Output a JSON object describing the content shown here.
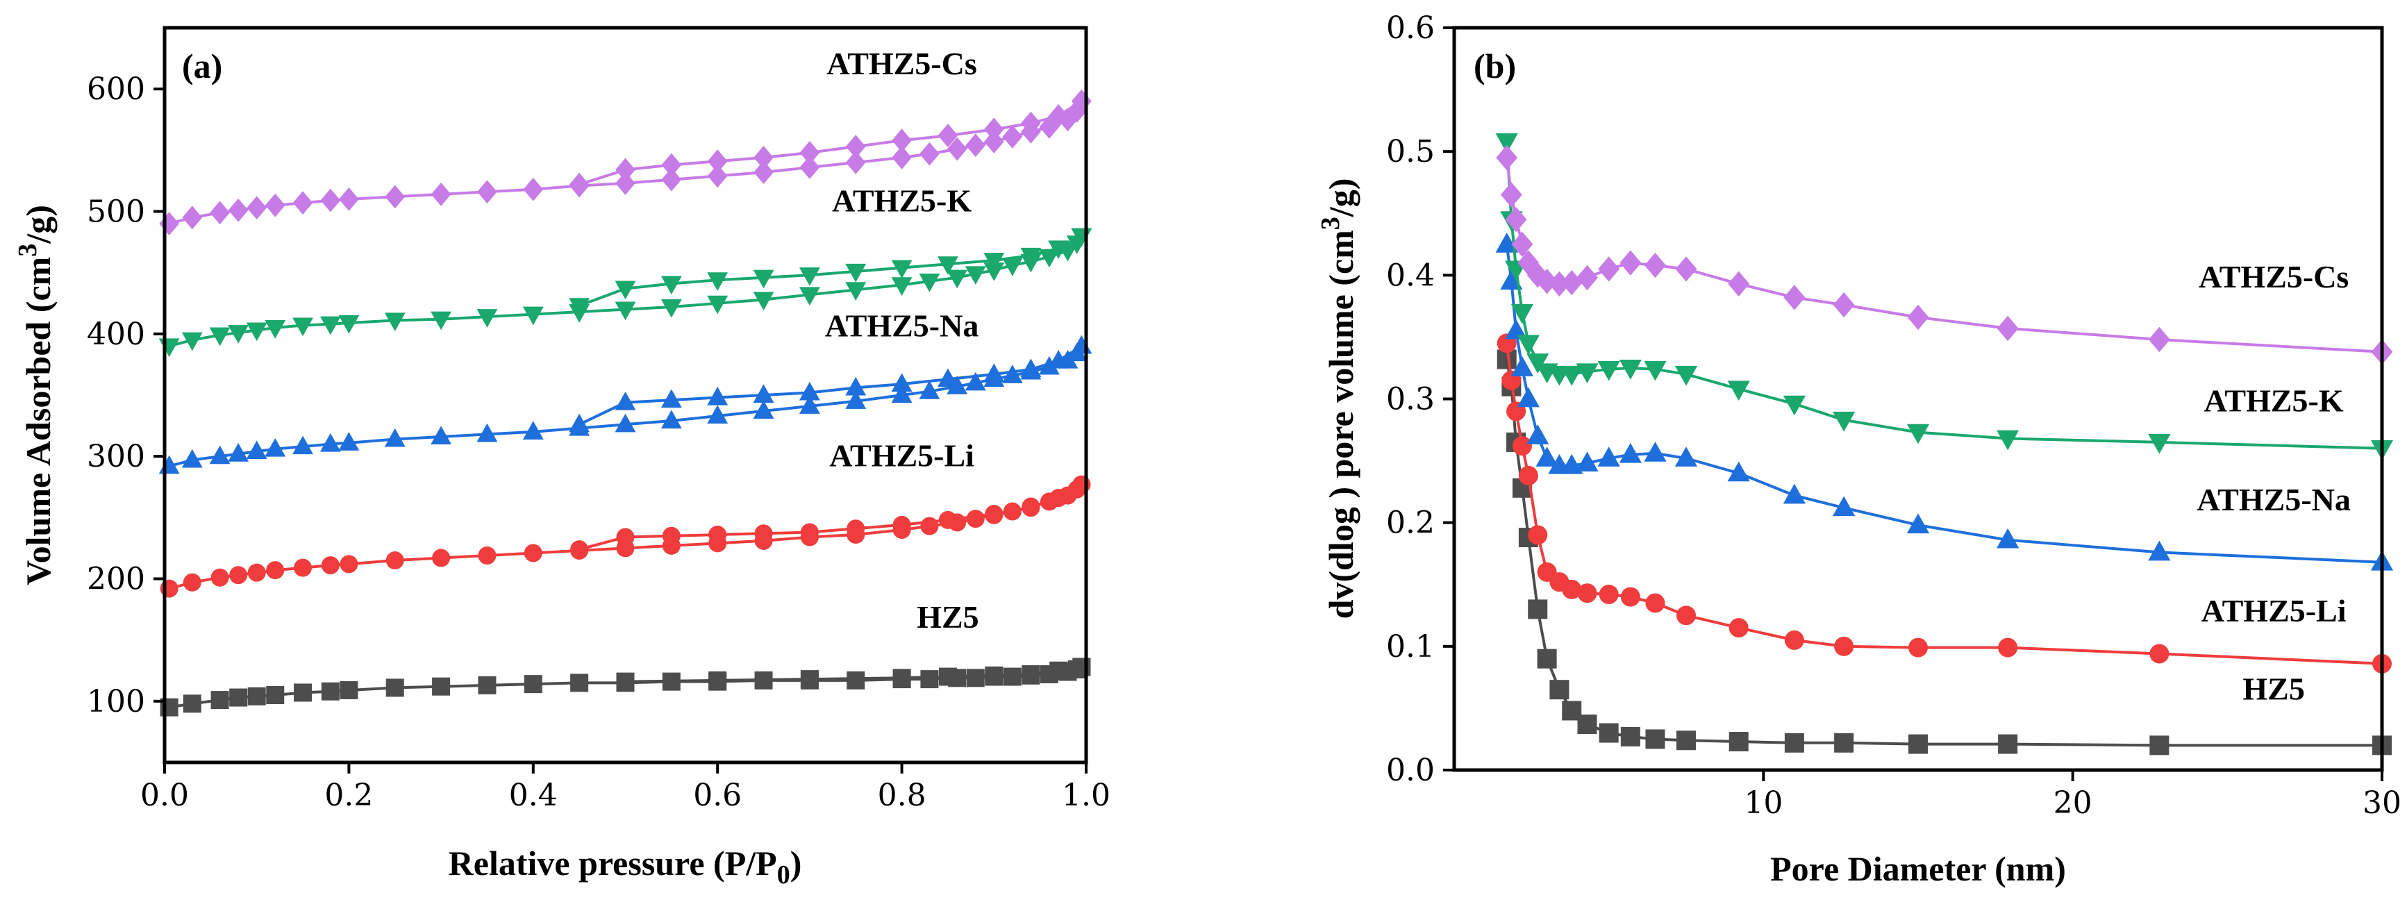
{
  "chart_data": [
    {
      "type": "line",
      "panel": "(a)",
      "title": "",
      "xlabel": "Relative pressure (P/P",
      "xlabel_sub": "0",
      "xlabel_close": ")",
      "ylabel": "Volume Adsorbed (cm",
      "ylabel_sup": "3",
      "ylabel_tail": "/g)",
      "xlim": [
        0.0,
        1.0
      ],
      "ylim": [
        50,
        650
      ],
      "x_ticks": [
        0.0,
        0.2,
        0.4,
        0.6,
        0.8,
        1.0
      ],
      "x_tick_labels": [
        "0.0",
        "0.2",
        "0.4",
        "0.6",
        "0.8",
        "1.0"
      ],
      "y_ticks": [
        100,
        200,
        300,
        400,
        500,
        600
      ],
      "y_tick_labels": [
        "100",
        "200",
        "300",
        "400",
        "500",
        "600"
      ],
      "series": [
        {
          "name": "HZ5",
          "color": "#4d4d4d",
          "marker": "square",
          "adsorption": {
            "x": [
              0.005,
              0.03,
              0.06,
              0.08,
              0.1,
              0.12,
              0.15,
              0.18,
              0.2,
              0.25,
              0.3,
              0.35,
              0.4,
              0.45,
              0.5,
              0.55,
              0.6,
              0.65,
              0.7,
              0.75,
              0.8,
              0.83,
              0.86,
              0.88,
              0.9,
              0.92,
              0.94,
              0.96,
              0.98,
              0.99,
              0.995
            ],
            "y": [
              95,
              98,
              101,
              103,
              104,
              105,
              107,
              108,
              109,
              111,
              112,
              113,
              114,
              115,
              115,
              116,
              116,
              117,
              117,
              117,
              118,
              118,
              119,
              119,
              120,
              120,
              121,
              122,
              124,
              126,
              128
            ]
          },
          "desorption": {
            "x": [
              0.995,
              0.97,
              0.94,
              0.9,
              0.85,
              0.8,
              0.7,
              0.6,
              0.5
            ],
            "y": [
              128,
              125,
              122,
              121,
              120,
              119,
              118,
              117,
              116
            ]
          }
        },
        {
          "name": "ATHZ5-Li",
          "color": "#f03c3c",
          "marker": "circle",
          "adsorption": {
            "x": [
              0.005,
              0.03,
              0.06,
              0.08,
              0.1,
              0.12,
              0.15,
              0.18,
              0.2,
              0.25,
              0.3,
              0.35,
              0.4,
              0.45,
              0.5,
              0.55,
              0.6,
              0.65,
              0.7,
              0.75,
              0.8,
              0.83,
              0.86,
              0.88,
              0.9,
              0.92,
              0.94,
              0.96,
              0.98,
              0.99,
              0.995
            ],
            "y": [
              192,
              197,
              201,
              203,
              205,
              207,
              209,
              211,
              212,
              215,
              217,
              219,
              221,
              223,
              225,
              227,
              229,
              231,
              234,
              236,
              240,
              243,
              246,
              249,
              252,
              255,
              259,
              263,
              268,
              273,
              277
            ]
          },
          "desorption": {
            "x": [
              0.995,
              0.97,
              0.94,
              0.9,
              0.85,
              0.8,
              0.75,
              0.7,
              0.65,
              0.6,
              0.55,
              0.5,
              0.45
            ],
            "y": [
              277,
              266,
              258,
              253,
              248,
              244,
              241,
              238,
              237,
              236,
              235,
              234,
              224
            ]
          }
        },
        {
          "name": "ATHZ5-Na",
          "color": "#1e6fdc",
          "marker": "triangle-up",
          "adsorption": {
            "x": [
              0.005,
              0.03,
              0.06,
              0.08,
              0.1,
              0.12,
              0.15,
              0.18,
              0.2,
              0.25,
              0.3,
              0.35,
              0.4,
              0.45,
              0.5,
              0.55,
              0.6,
              0.65,
              0.7,
              0.75,
              0.8,
              0.83,
              0.86,
              0.88,
              0.9,
              0.92,
              0.94,
              0.96,
              0.98,
              0.99,
              0.995
            ],
            "y": [
              292,
              297,
              300,
              302,
              304,
              306,
              308,
              310,
              311,
              314,
              316,
              318,
              320,
              323,
              326,
              329,
              333,
              337,
              341,
              345,
              350,
              353,
              357,
              360,
              363,
              366,
              369,
              373,
              378,
              384,
              390
            ]
          },
          "desorption": {
            "x": [
              0.995,
              0.97,
              0.94,
              0.9,
              0.85,
              0.8,
              0.75,
              0.7,
              0.65,
              0.6,
              0.55,
              0.5,
              0.45
            ],
            "y": [
              390,
              378,
              371,
              367,
              363,
              359,
              356,
              352,
              350,
              348,
              346,
              344,
              326
            ]
          }
        },
        {
          "name": "ATHZ5-K",
          "color": "#1aa86c",
          "marker": "triangle-down",
          "adsorption": {
            "x": [
              0.005,
              0.03,
              0.06,
              0.08,
              0.1,
              0.12,
              0.15,
              0.18,
              0.2,
              0.25,
              0.3,
              0.35,
              0.4,
              0.45,
              0.5,
              0.55,
              0.6,
              0.65,
              0.7,
              0.75,
              0.8,
              0.83,
              0.86,
              0.88,
              0.9,
              0.92,
              0.94,
              0.96,
              0.98,
              0.99,
              0.995
            ],
            "y": [
              390,
              395,
              399,
              401,
              403,
              405,
              407,
              408,
              409,
              411,
              412,
              414,
              416,
              418,
              420,
              422,
              425,
              428,
              432,
              436,
              440,
              443,
              446,
              449,
              452,
              456,
              459,
              463,
              468,
              474,
              480
            ]
          },
          "desorption": {
            "x": [
              0.995,
              0.97,
              0.94,
              0.9,
              0.85,
              0.8,
              0.75,
              0.7,
              0.65,
              0.6,
              0.55,
              0.5,
              0.45
            ],
            "y": [
              480,
              470,
              464,
              460,
              457,
              454,
              451,
              448,
              446,
              444,
              441,
              437,
              423
            ]
          }
        },
        {
          "name": "ATHZ5-Cs",
          "color": "#c77be6",
          "marker": "diamond",
          "adsorption": {
            "x": [
              0.005,
              0.03,
              0.06,
              0.08,
              0.1,
              0.12,
              0.15,
              0.18,
              0.2,
              0.25,
              0.3,
              0.35,
              0.4,
              0.45,
              0.5,
              0.55,
              0.6,
              0.65,
              0.7,
              0.75,
              0.8,
              0.83,
              0.86,
              0.88,
              0.9,
              0.92,
              0.94,
              0.96,
              0.98,
              0.99,
              0.995
            ],
            "y": [
              490,
              495,
              499,
              501,
              503,
              505,
              507,
              509,
              510,
              512,
              514,
              516,
              518,
              521,
              523,
              526,
              529,
              532,
              536,
              540,
              544,
              547,
              551,
              554,
              557,
              561,
              565,
              569,
              575,
              582,
              590
            ]
          },
          "desorption": {
            "x": [
              0.995,
              0.97,
              0.94,
              0.9,
              0.85,
              0.8,
              0.75,
              0.7,
              0.65,
              0.6,
              0.55,
              0.5,
              0.45
            ],
            "y": [
              590,
              578,
              572,
              567,
              562,
              558,
              553,
              548,
              544,
              541,
              538,
              534,
              522
            ]
          }
        }
      ],
      "annotations": [
        {
          "text": "ATHZ5-Cs",
          "x": 0.8,
          "y": 612
        },
        {
          "text": "ATHZ5-K",
          "x": 0.8,
          "y": 500
        },
        {
          "text": "ATHZ5-Na",
          "x": 0.8,
          "y": 398
        },
        {
          "text": "ATHZ5-Li",
          "x": 0.8,
          "y": 292
        },
        {
          "text": "HZ5",
          "x": 0.85,
          "y": 160
        }
      ]
    },
    {
      "type": "line",
      "panel": "(b)",
      "title": "",
      "xlabel": "Pore Diameter (nm)",
      "ylabel": "dv(dlog ) pore volume (cm",
      "ylabel_sup": "3",
      "ylabel_tail": "/g)",
      "xlim": [
        0,
        30
      ],
      "ylim": [
        0.0,
        0.6
      ],
      "x_ticks": [
        10,
        20,
        30
      ],
      "x_tick_labels": [
        "10",
        "20",
        "30"
      ],
      "y_ticks": [
        0.0,
        0.1,
        0.2,
        0.3,
        0.4,
        0.5,
        0.6
      ],
      "y_tick_labels": [
        "0.0",
        "0.1",
        "0.2",
        "0.3",
        "0.4",
        "0.5",
        "0.6"
      ],
      "series": [
        {
          "name": "HZ5",
          "color": "#4d4d4d",
          "marker": "square",
          "x": [
            1.7,
            1.85,
            2.0,
            2.2,
            2.4,
            2.7,
            3.0,
            3.4,
            3.8,
            4.3,
            5.0,
            5.7,
            6.5,
            7.5,
            9.2,
            11.0,
            12.6,
            15.0,
            17.9,
            22.8,
            30.0
          ],
          "y": [
            0.332,
            0.31,
            0.265,
            0.228,
            0.188,
            0.13,
            0.09,
            0.065,
            0.048,
            0.037,
            0.03,
            0.027,
            0.025,
            0.024,
            0.023,
            0.022,
            0.022,
            0.021,
            0.021,
            0.02,
            0.02
          ]
        },
        {
          "name": "ATHZ5-Li",
          "color": "#f03c3c",
          "marker": "circle",
          "x": [
            1.7,
            1.85,
            2.0,
            2.2,
            2.4,
            2.7,
            3.0,
            3.4,
            3.8,
            4.3,
            5.0,
            5.7,
            6.5,
            7.5,
            9.2,
            11.0,
            12.6,
            15.0,
            17.9,
            22.8,
            30.0
          ],
          "y": [
            0.345,
            0.315,
            0.29,
            0.262,
            0.238,
            0.19,
            0.16,
            0.152,
            0.146,
            0.143,
            0.142,
            0.14,
            0.135,
            0.125,
            0.115,
            0.105,
            0.1,
            0.099,
            0.099,
            0.094,
            0.086
          ]
        },
        {
          "name": "ATHZ5-Na",
          "color": "#1e6fdc",
          "marker": "triangle-up",
          "x": [
            1.7,
            1.85,
            2.0,
            2.2,
            2.4,
            2.7,
            3.0,
            3.4,
            3.8,
            4.3,
            5.0,
            5.7,
            6.5,
            7.5,
            9.2,
            11.0,
            12.6,
            15.0,
            17.9,
            22.8,
            30.0
          ],
          "y": [
            0.425,
            0.395,
            0.355,
            0.325,
            0.3,
            0.27,
            0.252,
            0.246,
            0.246,
            0.248,
            0.252,
            0.255,
            0.256,
            0.252,
            0.24,
            0.222,
            0.212,
            0.198,
            0.186,
            0.176,
            0.168
          ]
        },
        {
          "name": "ATHZ5-K",
          "color": "#1aa86c",
          "marker": "triangle-down",
          "x": [
            1.7,
            1.85,
            2.0,
            2.2,
            2.4,
            2.7,
            3.0,
            3.4,
            3.8,
            4.3,
            5.0,
            5.7,
            6.5,
            7.5,
            9.2,
            11.0,
            12.6,
            15.0,
            17.9,
            22.8,
            30.0
          ],
          "y": [
            0.508,
            0.445,
            0.405,
            0.37,
            0.345,
            0.33,
            0.322,
            0.32,
            0.32,
            0.322,
            0.324,
            0.325,
            0.324,
            0.32,
            0.308,
            0.296,
            0.283,
            0.273,
            0.268,
            0.265,
            0.26
          ]
        },
        {
          "name": "ATHZ5-Cs",
          "color": "#c77be6",
          "marker": "diamond",
          "x": [
            1.7,
            1.85,
            2.0,
            2.2,
            2.4,
            2.7,
            3.0,
            3.4,
            3.8,
            4.3,
            5.0,
            5.7,
            6.5,
            7.5,
            9.2,
            11.0,
            12.6,
            15.0,
            17.9,
            22.8,
            30.0
          ],
          "y": [
            0.495,
            0.465,
            0.445,
            0.425,
            0.41,
            0.4,
            0.395,
            0.393,
            0.394,
            0.398,
            0.405,
            0.41,
            0.408,
            0.405,
            0.393,
            0.382,
            0.376,
            0.366,
            0.357,
            0.348,
            0.338
          ]
        }
      ],
      "annotations": [
        {
          "text": "ATHZ5-Cs",
          "x": 26.5,
          "y": 0.39
        },
        {
          "text": "ATHZ5-K",
          "x": 26.5,
          "y": 0.29
        },
        {
          "text": "ATHZ5-Na",
          "x": 26.5,
          "y": 0.21
        },
        {
          "text": "ATHZ5-Li",
          "x": 26.5,
          "y": 0.12
        },
        {
          "text": "HZ5",
          "x": 26.5,
          "y": 0.057
        }
      ]
    }
  ]
}
